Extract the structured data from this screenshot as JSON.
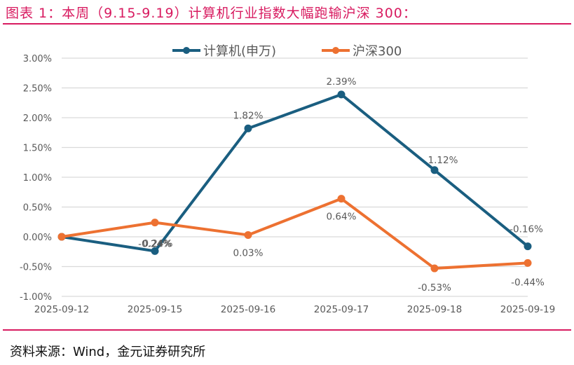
{
  "title": "图表 1：本周（9.15-9.19）计算机行业指数大幅跑输沪深 300：",
  "source": "资料来源：Wind，金元证券研究所",
  "colors": {
    "accent": "#d81b60",
    "series1": "#1a5e80",
    "series2": "#ed7131",
    "grid": "#d9d9d9",
    "text": "#595959"
  },
  "legend": {
    "series1": "计算机(申万)",
    "series2": "沪深300"
  },
  "y_ticks": [
    "3.00%",
    "2.50%",
    "2.00%",
    "1.50%",
    "1.00%",
    "0.50%",
    "0.00%",
    "-0.50%",
    "-1.00%"
  ],
  "x_ticks": [
    "2025-09-12",
    "2025-09-15",
    "2025-09-16",
    "2025-09-17",
    "2025-09-18",
    "2025-09-19"
  ],
  "labels": {
    "s1": [
      "",
      "-0.24%",
      "1.82%",
      "2.39%",
      "1.12%",
      "-0.16%"
    ],
    "s2": [
      "",
      "0.24%",
      "0.03%",
      "0.64%",
      "-0.53%",
      "-0.44%"
    ]
  },
  "chart_data": {
    "type": "line",
    "title": "本周（9.15-9.19）计算机行业指数大幅跑输沪深 300",
    "xlabel": "",
    "ylabel": "",
    "categories": [
      "2025-09-12",
      "2025-09-15",
      "2025-09-16",
      "2025-09-17",
      "2025-09-18",
      "2025-09-19"
    ],
    "series": [
      {
        "name": "计算机(申万)",
        "values": [
          0.0,
          -0.24,
          1.82,
          2.39,
          1.12,
          -0.16
        ]
      },
      {
        "name": "沪深300",
        "values": [
          0.0,
          0.24,
          0.03,
          0.64,
          -0.53,
          -0.44
        ]
      }
    ],
    "ylim": [
      -1.0,
      3.0
    ],
    "y_unit": "%",
    "grid": true,
    "legend_position": "top"
  }
}
